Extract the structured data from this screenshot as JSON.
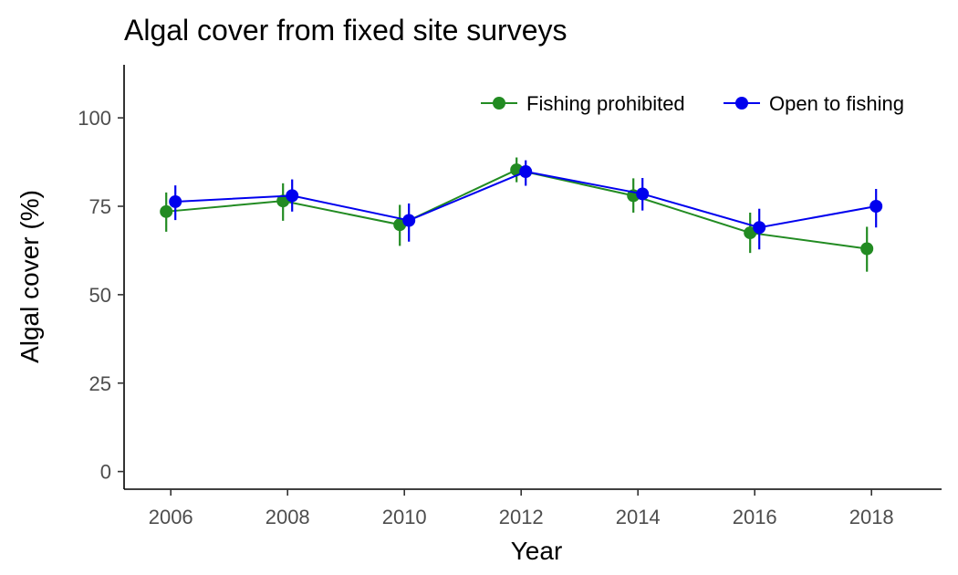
{
  "chart_data": {
    "type": "line",
    "title": "Algal cover from fixed site surveys",
    "xlabel": "Year",
    "ylabel": "Algal cover (%)",
    "x": [
      2006,
      2008,
      2010,
      2012,
      2014,
      2016,
      2018
    ],
    "x_ticks": [
      "2006",
      "2008",
      "2010",
      "2012",
      "2014",
      "2016",
      "2018"
    ],
    "y_ticks": [
      "0",
      "25",
      "50",
      "75",
      "100"
    ],
    "xlim": [
      2005.2,
      2019.2
    ],
    "ylim": [
      -5,
      115
    ],
    "grid": false,
    "legend_position": "top-right",
    "error_bars": true,
    "series": [
      {
        "name": "Fishing prohibited",
        "color": "#228B22",
        "values": [
          73.5,
          76.5,
          69.8,
          85.3,
          78.0,
          67.5,
          63.0
        ],
        "lower": [
          67.8,
          70.9,
          63.8,
          81.8,
          73.2,
          61.8,
          56.5
        ],
        "upper": [
          78.9,
          81.5,
          75.4,
          88.8,
          82.9,
          73.2,
          69.2
        ]
      },
      {
        "name": "Open to fishing",
        "color": "#0000EE",
        "values": [
          76.3,
          78.0,
          71.0,
          84.8,
          78.5,
          69.0,
          75.0
        ],
        "lower": [
          71.1,
          73.5,
          65.0,
          80.8,
          73.8,
          62.8,
          69.0
        ],
        "upper": [
          80.9,
          82.6,
          75.8,
          88.0,
          83.0,
          74.3,
          79.9
        ]
      }
    ]
  }
}
